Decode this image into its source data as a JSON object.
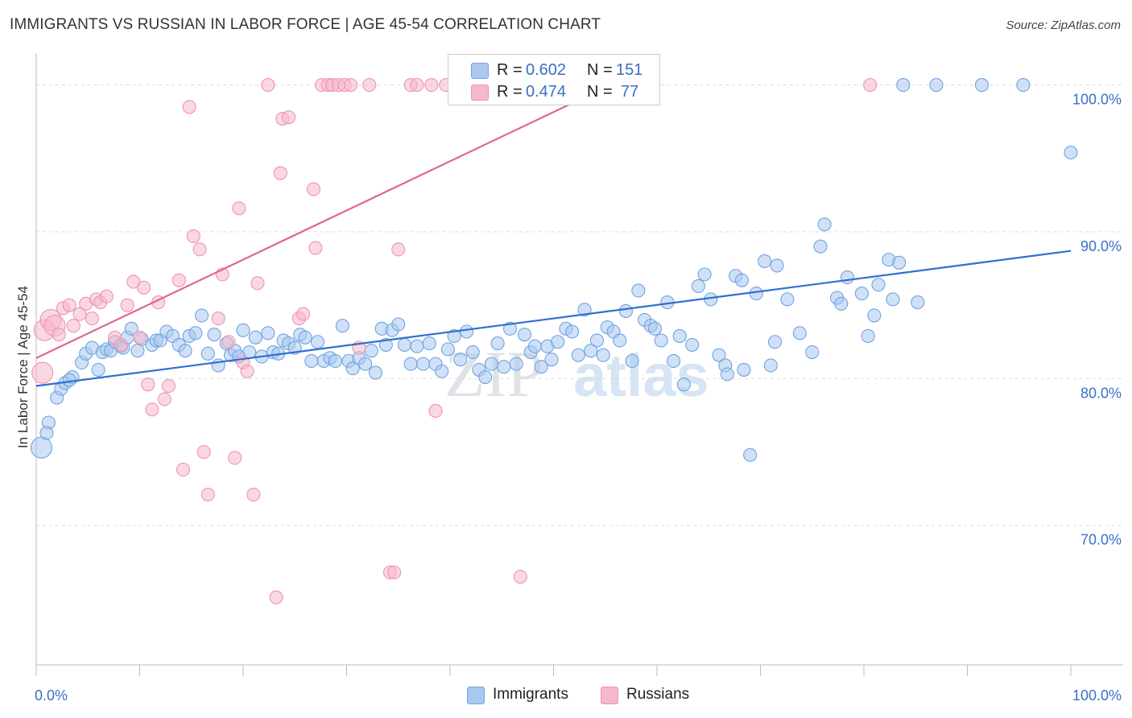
{
  "header": {
    "title": "IMMIGRANTS VS RUSSIAN IN LABOR FORCE | AGE 45-54 CORRELATION CHART",
    "source": "Source: ZipAtlas.com"
  },
  "watermark": {
    "zip": "ZIP",
    "atlas": "atlas"
  },
  "legend_stats": [
    {
      "r_label": "R =",
      "r_value": "0.602",
      "n_label": "N =",
      "n_value": "151",
      "color": "#a9c8f0"
    },
    {
      "r_label": "R =",
      "r_value": "0.474",
      "n_label": "N =",
      "n_value": "77",
      "color": "#f6b8cc"
    }
  ],
  "bottom_legend": [
    {
      "label": "Immigrants",
      "color": "#a9c8f0"
    },
    {
      "label": "Russians",
      "color": "#f6b8cc"
    }
  ],
  "chart_data": {
    "type": "scatter",
    "title": "IMMIGRANTS VS RUSSIAN IN LABOR FORCE | AGE 45-54 CORRELATION CHART",
    "ylabel": "In Labor Force | Age 45-54",
    "xlabel": "",
    "xlim": [
      0,
      100
    ],
    "ylim": [
      60.5,
      102.5
    ],
    "x_tick_labels": [
      {
        "value": 0,
        "label": "0.0%"
      },
      {
        "value": 100,
        "label": "100.0%"
      }
    ],
    "y_tick_labels": [
      {
        "value": 100,
        "label": "100.0%"
      },
      {
        "value": 90,
        "label": "90.0%"
      },
      {
        "value": 80,
        "label": "80.0%"
      },
      {
        "value": 70,
        "label": "70.0%"
      }
    ],
    "grid": true,
    "series": [
      {
        "name": "Immigrants",
        "color": "#6fa3e0",
        "fill": "#a9c8f0",
        "trend": {
          "x": [
            0,
            100
          ],
          "y": [
            79.5,
            88.7
          ],
          "color": "#2f6fd0"
        },
        "points": [
          [
            0.5,
            75.3
          ],
          [
            1.2,
            77
          ],
          [
            1.0,
            76.3
          ],
          [
            2.0,
            78.7
          ],
          [
            2.4,
            79.3
          ],
          [
            2.8,
            79.7
          ],
          [
            3.5,
            80.1
          ],
          [
            3.2,
            79.9
          ],
          [
            4.4,
            81.1
          ],
          [
            4.8,
            81.7
          ],
          [
            5.4,
            82.1
          ],
          [
            6.0,
            80.6
          ],
          [
            6.4,
            81.8
          ],
          [
            6.8,
            82.0
          ],
          [
            7.2,
            81.9
          ],
          [
            7.6,
            82.5
          ],
          [
            8.2,
            82.2
          ],
          [
            8.4,
            82.1
          ],
          [
            8.8,
            82.8
          ],
          [
            9.2,
            83.4
          ],
          [
            9.8,
            81.9
          ],
          [
            10.2,
            82.7
          ],
          [
            11.2,
            82.3
          ],
          [
            11.6,
            82.6
          ],
          [
            12.0,
            82.6
          ],
          [
            12.6,
            83.2
          ],
          [
            13.2,
            82.9
          ],
          [
            13.8,
            82.3
          ],
          [
            14.4,
            81.9
          ],
          [
            14.8,
            82.9
          ],
          [
            15.4,
            83.1
          ],
          [
            16.0,
            84.3
          ],
          [
            16.6,
            81.7
          ],
          [
            17.2,
            83.0
          ],
          [
            17.6,
            80.9
          ],
          [
            18.4,
            82.4
          ],
          [
            18.8,
            81.6
          ],
          [
            19.2,
            81.9
          ],
          [
            19.6,
            81.5
          ],
          [
            20.0,
            83.3
          ],
          [
            20.6,
            81.8
          ],
          [
            21.2,
            82.8
          ],
          [
            21.8,
            81.5
          ],
          [
            22.4,
            83.1
          ],
          [
            22.9,
            81.8
          ],
          [
            23.4,
            81.7
          ],
          [
            23.9,
            82.6
          ],
          [
            24.4,
            82.4
          ],
          [
            25.0,
            82.1
          ],
          [
            25.5,
            83.0
          ],
          [
            26.0,
            82.8
          ],
          [
            26.6,
            81.2
          ],
          [
            27.2,
            82.5
          ],
          [
            27.8,
            81.2
          ],
          [
            28.4,
            81.4
          ],
          [
            28.9,
            81.2
          ],
          [
            29.6,
            83.6
          ],
          [
            30.2,
            81.2
          ],
          [
            30.6,
            80.7
          ],
          [
            31.2,
            81.4
          ],
          [
            31.8,
            81.0
          ],
          [
            32.4,
            81.9
          ],
          [
            32.8,
            80.4
          ],
          [
            33.4,
            83.4
          ],
          [
            33.8,
            82.3
          ],
          [
            34.4,
            83.3
          ],
          [
            35.0,
            83.7
          ],
          [
            35.6,
            82.3
          ],
          [
            36.2,
            81.0
          ],
          [
            36.8,
            82.2
          ],
          [
            37.4,
            81.0
          ],
          [
            38.0,
            82.4
          ],
          [
            38.6,
            81.0
          ],
          [
            39.2,
            80.5
          ],
          [
            39.8,
            82.0
          ],
          [
            40.4,
            82.9
          ],
          [
            41.0,
            81.3
          ],
          [
            41.6,
            83.2
          ],
          [
            42.2,
            81.8
          ],
          [
            42.8,
            80.6
          ],
          [
            43.4,
            80.1
          ],
          [
            44.0,
            81.0
          ],
          [
            44.6,
            82.4
          ],
          [
            45.2,
            80.8
          ],
          [
            45.8,
            83.4
          ],
          [
            46.4,
            81.0
          ],
          [
            47.2,
            83.0
          ],
          [
            47.8,
            81.8
          ],
          [
            48.2,
            82.2
          ],
          [
            48.8,
            80.8
          ],
          [
            49.4,
            82.2
          ],
          [
            49.8,
            81.3
          ],
          [
            50.4,
            82.5
          ],
          [
            51.2,
            83.4
          ],
          [
            51.8,
            83.2
          ],
          [
            52.4,
            81.6
          ],
          [
            53.0,
            84.7
          ],
          [
            53.6,
            81.9
          ],
          [
            54.2,
            82.6
          ],
          [
            54.8,
            81.6
          ],
          [
            55.2,
            83.5
          ],
          [
            55.8,
            83.2
          ],
          [
            56.4,
            82.6
          ],
          [
            57.0,
            84.6
          ],
          [
            57.6,
            81.2
          ],
          [
            58.2,
            86.0
          ],
          [
            58.8,
            84.0
          ],
          [
            59.4,
            83.6
          ],
          [
            59.8,
            83.4
          ],
          [
            60.4,
            82.6
          ],
          [
            61.0,
            85.2
          ],
          [
            61.6,
            81.2
          ],
          [
            62.2,
            82.9
          ],
          [
            62.6,
            79.6
          ],
          [
            63.4,
            82.3
          ],
          [
            64.0,
            86.3
          ],
          [
            64.6,
            87.1
          ],
          [
            65.2,
            85.4
          ],
          [
            66.0,
            81.6
          ],
          [
            66.6,
            80.9
          ],
          [
            66.8,
            80.3
          ],
          [
            67.6,
            87.0
          ],
          [
            68.2,
            86.7
          ],
          [
            68.4,
            80.6
          ],
          [
            69.0,
            74.8
          ],
          [
            69.6,
            85.8
          ],
          [
            70.4,
            88.0
          ],
          [
            71.0,
            80.9
          ],
          [
            71.6,
            87.7
          ],
          [
            71.4,
            82.5
          ],
          [
            72.6,
            85.4
          ],
          [
            73.8,
            83.1
          ],
          [
            75.0,
            81.8
          ],
          [
            75.8,
            89.0
          ],
          [
            76.2,
            90.5
          ],
          [
            77.4,
            85.5
          ],
          [
            77.8,
            85.1
          ],
          [
            78.4,
            86.9
          ],
          [
            79.8,
            85.8
          ],
          [
            80.4,
            82.9
          ],
          [
            81.0,
            84.3
          ],
          [
            81.4,
            86.4
          ],
          [
            82.4,
            88.1
          ],
          [
            82.8,
            85.4
          ],
          [
            83.4,
            87.9
          ],
          [
            85.2,
            85.2
          ],
          [
            83.8,
            100
          ],
          [
            87.0,
            100
          ],
          [
            91.4,
            100
          ],
          [
            95.4,
            100
          ],
          [
            100.0,
            95.4
          ]
        ]
      },
      {
        "name": "Russians",
        "color": "#ef93b0",
        "fill": "#f6b8cc",
        "trend": {
          "x": [
            0,
            55.5
          ],
          "y": [
            81.4,
            100.0
          ],
          "color": "#e0658d"
        },
        "points": [
          [
            0.6,
            80.4
          ],
          [
            0.8,
            83.3
          ],
          [
            1.4,
            84.0
          ],
          [
            1.8,
            83.6
          ],
          [
            2.2,
            83.0
          ],
          [
            2.6,
            84.8
          ],
          [
            3.2,
            85.0
          ],
          [
            3.6,
            83.6
          ],
          [
            4.2,
            84.4
          ],
          [
            4.8,
            85.1
          ],
          [
            5.4,
            84.1
          ],
          [
            5.8,
            85.4
          ],
          [
            6.2,
            85.2
          ],
          [
            6.8,
            85.6
          ],
          [
            7.6,
            82.8
          ],
          [
            8.2,
            82.3
          ],
          [
            8.8,
            85.0
          ],
          [
            9.4,
            86.6
          ],
          [
            10.0,
            82.8
          ],
          [
            10.4,
            86.2
          ],
          [
            10.8,
            79.6
          ],
          [
            11.2,
            77.9
          ],
          [
            11.8,
            85.2
          ],
          [
            12.4,
            78.6
          ],
          [
            12.8,
            79.5
          ],
          [
            13.8,
            86.7
          ],
          [
            14.2,
            73.8
          ],
          [
            14.8,
            98.5
          ],
          [
            15.2,
            89.7
          ],
          [
            15.8,
            88.8
          ],
          [
            16.2,
            75.0
          ],
          [
            16.6,
            72.1
          ],
          [
            17.6,
            84.1
          ],
          [
            18.0,
            87.1
          ],
          [
            18.6,
            82.5
          ],
          [
            19.2,
            74.6
          ],
          [
            19.6,
            91.6
          ],
          [
            20.0,
            81.1
          ],
          [
            20.4,
            80.5
          ],
          [
            21.0,
            72.1
          ],
          [
            21.4,
            86.5
          ],
          [
            22.4,
            100
          ],
          [
            23.2,
            65.1
          ],
          [
            23.6,
            94.0
          ],
          [
            23.8,
            97.7
          ],
          [
            24.4,
            97.8
          ],
          [
            25.4,
            84.1
          ],
          [
            25.8,
            84.4
          ],
          [
            26.8,
            92.9
          ],
          [
            27.0,
            88.9
          ],
          [
            27.6,
            100
          ],
          [
            28.2,
            100
          ],
          [
            28.6,
            100
          ],
          [
            29.2,
            100
          ],
          [
            29.8,
            100
          ],
          [
            30.4,
            100
          ],
          [
            31.2,
            82.1
          ],
          [
            32.2,
            100
          ],
          [
            34.2,
            66.8
          ],
          [
            34.6,
            66.8
          ],
          [
            35.0,
            88.8
          ],
          [
            36.2,
            100
          ],
          [
            36.8,
            100
          ],
          [
            38.2,
            100
          ],
          [
            38.6,
            77.8
          ],
          [
            39.6,
            100
          ],
          [
            40.8,
            100
          ],
          [
            43.2,
            100
          ],
          [
            45.2,
            100
          ],
          [
            46.8,
            66.5
          ],
          [
            47.2,
            100
          ],
          [
            48.8,
            100
          ],
          [
            52.6,
            100
          ],
          [
            53.2,
            100
          ],
          [
            53.8,
            100
          ],
          [
            54.4,
            100
          ],
          [
            80.6,
            100
          ]
        ]
      }
    ]
  }
}
